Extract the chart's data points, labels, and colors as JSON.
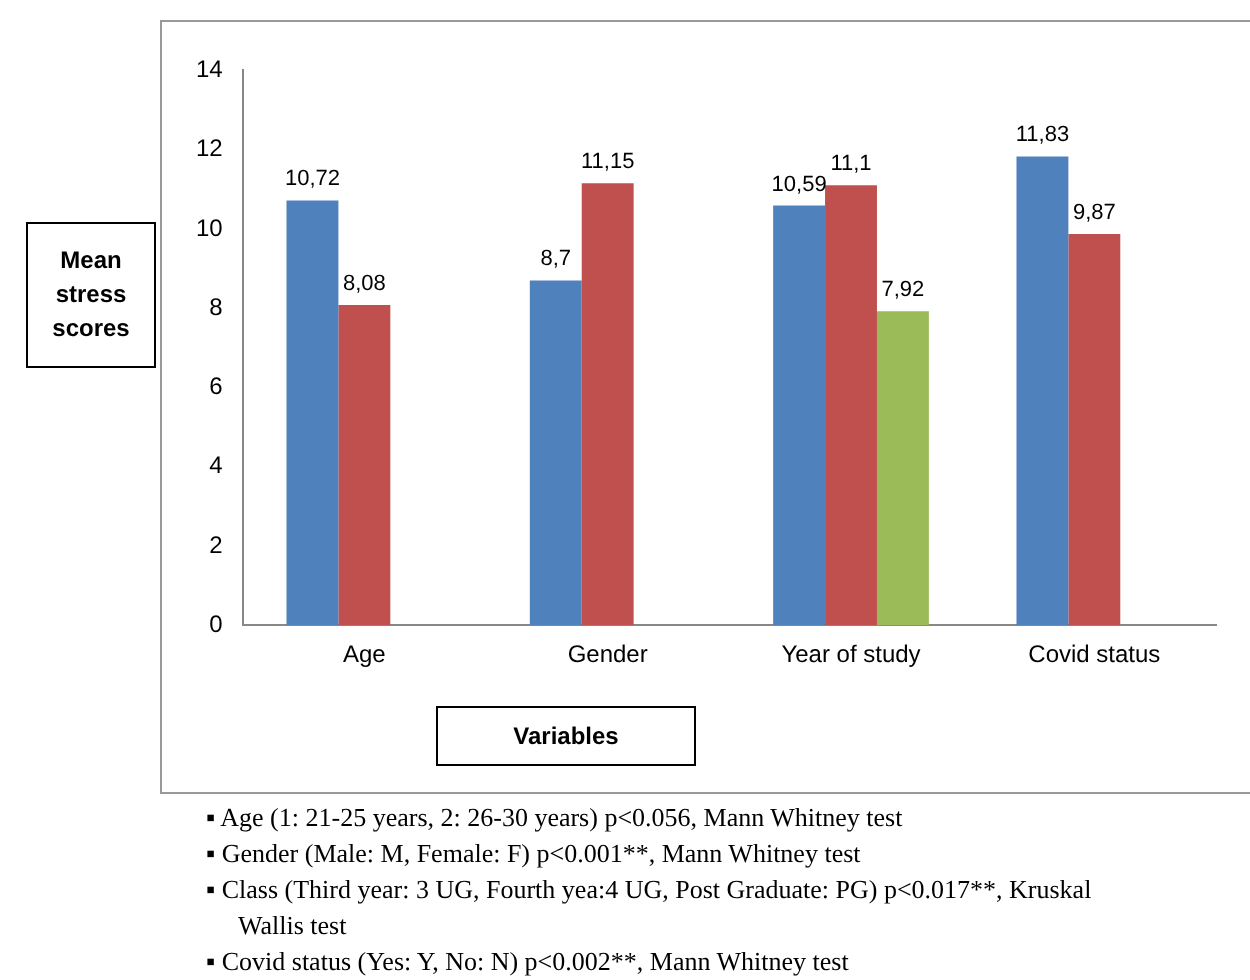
{
  "chart_data": {
    "type": "bar",
    "ylabel": "Mean stress scores",
    "xlabel": "Variables",
    "categories": [
      "Age",
      "Gender",
      "Year of study",
      "Covid status"
    ],
    "series": [
      {
        "color": "#4f81bd",
        "values": [
          10.72,
          8.7,
          10.59,
          11.83
        ],
        "value_labels": [
          "10,72",
          "8,7",
          "10,59",
          "11,83"
        ]
      },
      {
        "color": "#c0504d",
        "values": [
          8.08,
          11.15,
          11.1,
          9.87
        ],
        "value_labels": [
          "8,08",
          "11,15",
          "11,1",
          "9,87"
        ]
      },
      {
        "color": "#9bbb59",
        "values": [
          null,
          null,
          7.92,
          null
        ],
        "value_labels": [
          null,
          null,
          "7,92",
          null
        ]
      }
    ],
    "ylim": [
      0,
      14
    ],
    "yticks": [
      0,
      2,
      4,
      6,
      8,
      10,
      12,
      14
    ],
    "grid": false,
    "legend": false,
    "annotations": [
      "▪ Age (1: 21-25 years, 2: 26-30 years) p<0.056, Mann Whitney test",
      "▪ Gender (Male: M, Female: F) p<0.001**, Mann Whitney test",
      "▪ Class (Third year: 3 UG, Fourth yea:4 UG, Post Graduate: PG) p<0.017**, Kruskal Wallis test",
      "▪ Covid status (Yes: Y, No: N) p<0.002**, Mann Whitney test"
    ]
  }
}
